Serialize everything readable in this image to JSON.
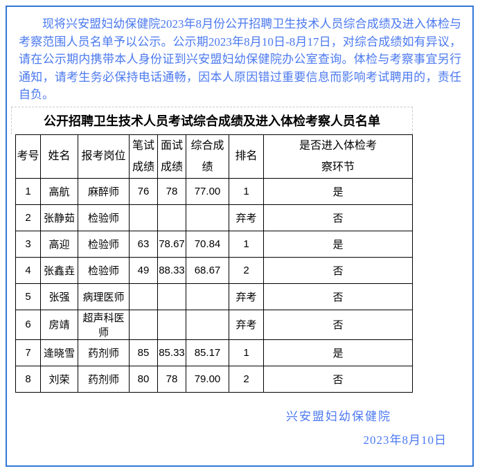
{
  "page": {
    "border_color": "#3077d8",
    "background_color": "#ffffff",
    "text_blue": "#4b79ef"
  },
  "notice": {
    "text": "现将兴安盟妇幼保健院2023年8月份公开招聘卫生技术人员综合成绩及进入体检与考察范围人员名单予以公示。公示期2023年8月10日-8月17日，对综合成绩如有异议，请在公示期内携带本人身份证到兴安盟妇幼保健院办公室查询。体检与考察事宜另行通知，请考生务必保持电话通畅，因本人原因错过重要信息而影响考试聘用的，责任自负。"
  },
  "table": {
    "title": "公开招聘卫生技术人员考试综合成绩及进入体检考察人员名单",
    "headers": [
      "考号",
      "姓名",
      "报考岗位",
      "笔试成绩",
      "面试成绩",
      "综合成绩",
      "排名",
      "是否进入体检考察环节"
    ],
    "rows": [
      [
        "1",
        "高航",
        "麻醉师",
        "76",
        "78",
        "77.00",
        "1",
        "是"
      ],
      [
        "2",
        "张静茹",
        "检验师",
        "",
        "",
        "",
        "弃考",
        "否"
      ],
      [
        "3",
        "高迎",
        "检验师",
        "63",
        "78.67",
        "70.84",
        "1",
        "是"
      ],
      [
        "4",
        "张鑫垚",
        "检验师",
        "49",
        "88.33",
        "68.67",
        "2",
        "否"
      ],
      [
        "5",
        "张强",
        "病理医师",
        "",
        "",
        "",
        "弃考",
        "否"
      ],
      [
        "6",
        "房靖",
        "超声科医师",
        "",
        "",
        "",
        "弃考",
        "否"
      ],
      [
        "7",
        "逄晓雪",
        "药剂师",
        "85",
        "85.33",
        "85.17",
        "1",
        "是"
      ],
      [
        "8",
        "刘荣",
        "药剂师",
        "80",
        "78",
        "79.00",
        "2",
        "否"
      ]
    ]
  },
  "signature": {
    "organization": "兴安盟妇幼保健院",
    "date": "2023年8月10日"
  }
}
